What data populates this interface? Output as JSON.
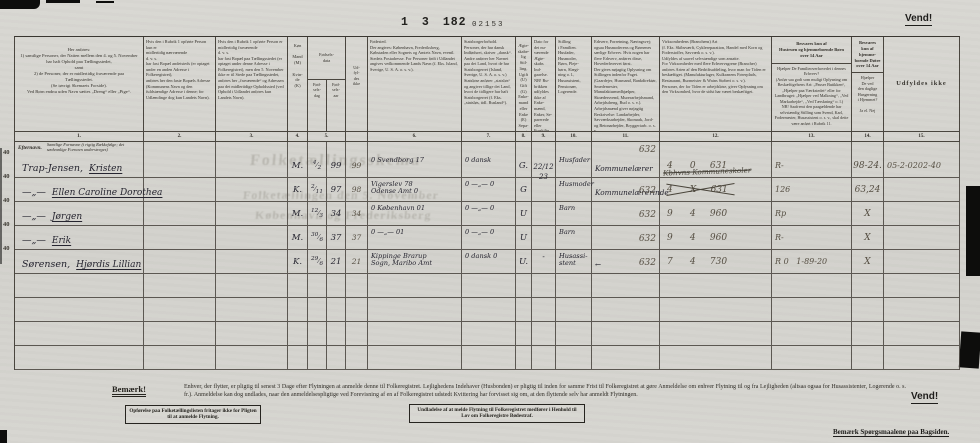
{
  "meta": {
    "stamp": {
      "p1": "1",
      "p2": "3",
      "p3": "182",
      "serial": "02153"
    },
    "vend_top": "Vend!",
    "vend_bottom": "Vend!",
    "bagside_note": "Bemærk Spørgsmaalene paa Bagsiden.",
    "watermark": {
      "l1": "Folketællingsskema",
      "l2": "Folketællingen den 5. November",
      "l3": "København og Frederiksberg"
    }
  },
  "header": {
    "c1": "Her anføres:\n1) samtlige Personer, der Natten mellem den 4. og 5. November har haft Ophold paa Tællingsstedet,\nsamt\n2) de Personer, der er midlertidig fraværende paa Tællingsstedet.\n(Se iøvrigt Skemaets Forside).\nVed Børn endnu uden Navn sættes „Dreng“ eller „Pige“.",
    "c2": "Hvis den i Rubrik 1 opførte Person kun er\nmidlertidig nærværende\nd. v. s.\nhar fast Bopæl andetsteds (er optaget under en anden Adresse i Folkeregistret),\nanføres her den faste Bopæls Adresse (Kommunens Navn og den fuldstændige Adresse i denne; for Udlændinge dog kun Landets Navn).",
    "c3": "Hvis den i Rubrik 1 opførte Person er\nmidlertidig fraværende\nd. v. s.\nhar fast Bopæl paa Tællingsstedet (er optaget under denne Adresse i Folkeregistret), men den 5. November ikke er til Stede paa Tællingsstedet,\nanføres her „fraværende“ og Adressen paa det midlertidige Opholdssted (ved Ophold i Udlandet anføres kun Landets Navn).",
    "sex": "Køn\n\nMand\n(M)\n\nKvin-\nde\n(K)",
    "birth_group": "Fødsels-\ndata",
    "birth_day": "Fød-\nsels-\ndag",
    "birth_year": "Fød-\nsels-\naar",
    "not_filled_small": "Ud-\nfyl-\ndes\nikke",
    "birthplace": "Fødested.\nDer angives: København, Frederiksberg, Købstaden eller Sognets og Amtets Navn, eventl. Stedets Postadresse. For Personer født i Udlandet angives vedkommende Lands Navn (f. Eks. Island, Sverige, U. S. A. o. s. v.).",
    "citizenship": "Statsborgerforhold.\nPersoner, der har dansk Indfødsret, skriver „dansk“. Andre anfører her Navnet paa det Land, hvori de har Statsborgerret (Island, Sverige, U. S. A. o. s. v.)\nStatsløse anfører „statsløs“ og angiver tillige det Land, hvori de tidligere har haft Statsborgerret (f. Eks. „statsløs, tidl. Rusland“).",
    "marital": "Ægte-\nskabe-\nlig Stil-\nling.\nUgift\n(U)\nGift\n(G)\nEnke-\nmand\neller\nEnke\n(E)\nSepa-\nreret\n(S)\nFra-\nskilt\n(F)",
    "marriage_date": "Dato for\ndet nu-\nværende\nÆgte-\nskabs\nInd-\ngaaelse.\nNB! Ru-\nbrikken\nudfyldes\nikke af\nEnke-\nmænd,\nEnker, Se-\nparerede\neller\nFraskilte",
    "family_position": "Stilling\ni Familien.\nHusfader,\nHusmoder,\nBørn, Pleje-\nbørn, Slægt-\nning o. l.,\nHusassistent,\nPensionær,\nLogerende.",
    "occupation": "Erhverv, Forretning, Næringsvej; ogsaa Husmoderens og Børnenes særlige Erhverv. Hvis nogen har flere Erhverv, anføres disse, Hovederhvervet først.\nDer gives nøjagtig Oplysning om Stillingen indenfor Faget. (Gaardejer, Husmand, Bankdirektør, Smedemester, Manufakturmedhjælper, Skrædersvend, Murerarbejdsmand, Arbejdsdreng, Bud o. s. v.).\nArbejdsmænd giver nøjagtig Beskrivelse: Landarbejder, Savværksarbejder, Skomark, Jord- og Betonarbejder, Bryggeriarb. o. s. v.\nFor Landbrugets Medhjælpere angives den særlige Beskæftigelse: Forkarl, Staldkarl, Malkepige, Husgerning o. s. v.\nForhenværende Næringsdrivende m. v. anfører et „Fhv.“ foran tidligere Livsstilling.\nLever man hovedsagelig af Formue, Aldersrente m. v. anføres dette.\nArbejdsløse og Personer, der hovedsagelig lever af Kommunehjælp m. v. anfører dette, men giver tillige Oplysning om deres egentlige Erhverv.",
    "business": "Virksomhedens (Branchens) Art\n(f. Eks. Skibsværft, Cyklereparation, Handel med Korn og Foderstoffer, Savværk o. s. v.).\nUdfyldes af saavel selvstændige som ansatte.\nFor Virksomheder med flere Erhvervsgrene (Brancher) anføres Arten af den Bedriftsafdeling, hvor man for Tiden er beskæftiget. (Manufakturlager, Kulkranens Førerplads, Restaurant, Burmeister & Wains Støberi o. s. v.).\nPersoner, der for Tiden er arbejdsløse, giver Oplysning om den Virksomhed, hvor de sidst har været beskæftiget.",
    "help_title": "Besvares kun af\nHustruen og hjemmeboende Børn\nover 14 Aar",
    "help_body": "Hjælper De Familieoverhovedet i dennes Erhverv?\n(Anfør saa godt som muligt Oplysning om Beskæftigelsens Art: „Passer Butikken“, „Hjælper paa Værkstedet“ eller for Landbruget: „Hjælper ved Malkning“, „Ved Markarbejde“, „Ved Tærskning“ o. l.)\nNB! Saafremt den paagældende har selvstændig Stilling som Svend, Karl, Fodermester, Husassistent o. s. v., skal dette være anført i Rubrik 11.",
    "daughters_title": "Besvares\nkun af\nhjemme-\nboende Døtre\nover 14 Aar",
    "daughters_body": "Hjælper\nDe ved\nden daglige\nHusgerning\ni Hjemmet?\n\nJa el. Nej",
    "not_filled_big": "Udfyldes ikke"
  },
  "table": {
    "nums": [
      "1.",
      "2.",
      "3.",
      "4.",
      "5.",
      "6.",
      "7.",
      "8.",
      "9.",
      "10.",
      "11.",
      "12.",
      "13.",
      "14.",
      "15."
    ],
    "sub": {
      "surname_label": "Efternavn.",
      "forenames_label": "Samtlige Fornavne (i rigtig Rækkefølge; det sædvanlige Fornavn understreges)"
    },
    "empty_rows": 4,
    "rows": [
      {
        "margin": "40",
        "surname": "Trap-Jensen,",
        "forename": "Kristen",
        "sex": "M.",
        "bday": "4/2",
        "byear": "99",
        "pyear": "99",
        "birthplace": "0  Svendborg  17",
        "citizen": "0  dansk",
        "marital": "G.",
        "mdate": "22/12\n23",
        "family": "Husfader",
        "occupation": "Kommunelærer",
        "occ_code": "632",
        "firm": "4      0     631",
        "r_mark": "R-",
        "x_mark": "98-24.",
        "long_code": "05-2-0202-40"
      },
      {
        "margin": "40",
        "surname": "—„—",
        "forename": "Ellen Caroline Dorothea",
        "sex": "K.",
        "bday": "2/11",
        "byear": "97",
        "pyear": "98",
        "birthplace": "Vigerslev   78\nOdense Amt  0",
        "citizen": "0  —„—  0",
        "marital": "G",
        "mdate": "",
        "family": "Husmoder",
        "occupation": "Kommunelærerinde",
        "occ_code": "632",
        "firm": "4      X     631",
        "firm_struck": true,
        "firm_note": "Kbhvns Kommuneskoler",
        "r_mark": "126",
        "x_mark": "63,24",
        "long_code": ""
      },
      {
        "margin": "40",
        "surname": "—„—",
        "forename": "Jørgen",
        "sex": "M.",
        "bday": "12/3",
        "byear": "34",
        "pyear": "34",
        "birthplace": "0  København  01",
        "citizen": "0  —„—  0",
        "marital": "U",
        "mdate": "",
        "family": "Barn",
        "occupation": "",
        "occ_code": "632",
        "firm": "9      4     960",
        "r_mark": "Rp",
        "x_mark": "X",
        "long_code": ""
      },
      {
        "margin": "40",
        "surname": "—„—",
        "forename": "Erik",
        "sex": "M.",
        "bday": "30/6",
        "byear": "37",
        "pyear": "37",
        "birthplace": "0   —„—   01",
        "citizen": "0  —„—  0",
        "marital": "U",
        "mdate": "",
        "family": "Barn",
        "occupation": "",
        "occ_code": "632",
        "firm": "9      4     960",
        "r_mark": "R-",
        "x_mark": "X",
        "long_code": ""
      },
      {
        "margin": "40",
        "surname": "Sørensen,",
        "forename": "Hjørdis Lillian",
        "sex": "K.",
        "bday": "29/6",
        "byear": "21",
        "pyear": "21",
        "birthplace": "Kippinge Brarup\nSogn, Maribo Amt",
        "citizen": "0  dansk  0",
        "marital": "U.",
        "mdate": "-",
        "family": "Husassi-\nstent",
        "occupation": "←",
        "occ_code": "632",
        "firm": "7      4     730",
        "r_mark": "R 0   1-89-20",
        "x_mark": "X",
        "long_code": ""
      }
    ]
  },
  "footer": {
    "label": "Bemærk!",
    "text": "Enhver, der flytter, er pligtig til senest 3 Dage efter Flytningen at anmelde denne til Folkeregistret. Lejlighedens Indehaver (Husbonden) er pligtig til inden for samme Frist til Folkeregistret at gøre Anmeldelse om enhver Flytning til og fra Lejligheden (altsaa ogsaa for Husassistenter, Logerende o. s. fr.). Anmeldelse kan dog undlades, naar den anmeldelsespligtige ved Forevisning af en af Folkeregistret udstedt Kvittering har forvisset sig om, at den flyttende selv har anmeldt Flytningen.",
    "box1": "Opførelse paa Folketællingslisten fritager ikke for Pligten til at anmelde Flytning.",
    "box2": "Undladelse af at melde Flytning til Folkeregistret medfører i Henhold til Lov om Folkeregistre Bødestraf."
  }
}
